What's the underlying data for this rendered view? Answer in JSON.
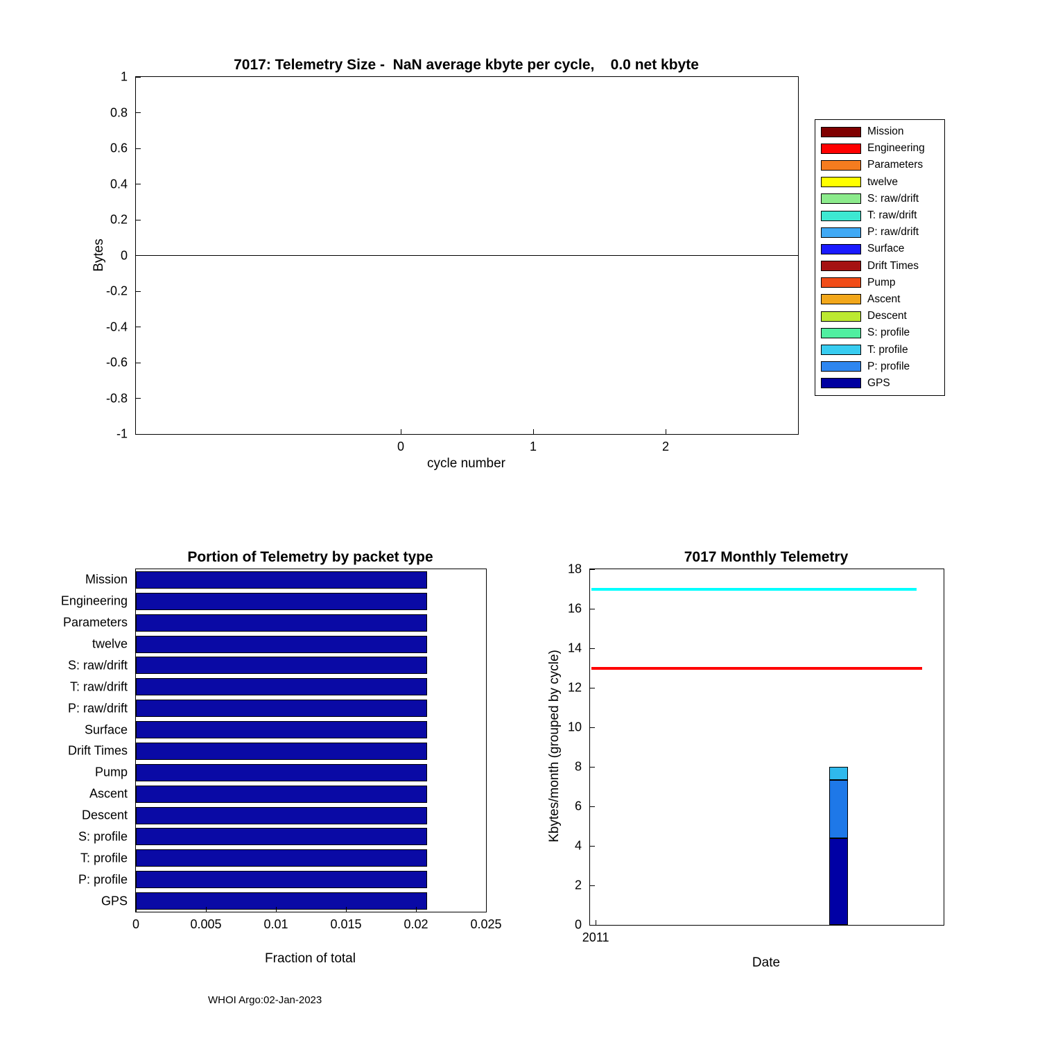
{
  "figure": {
    "footer": "WHOI Argo:02-Jan-2023"
  },
  "chart_data": [
    {
      "id": "telemetry-size",
      "type": "line",
      "title": "7017: Telemetry Size -  NaN average kbyte per cycle,    0.0 net kbyte",
      "xlabel": "cycle number",
      "ylabel": "Bytes",
      "xlim": [
        -2,
        3
      ],
      "ylim": [
        -1,
        1
      ],
      "xticks": [
        0,
        1,
        2
      ],
      "yticks": [
        -1,
        -0.8,
        -0.6,
        -0.4,
        -0.2,
        0,
        0.2,
        0.4,
        0.6,
        0.8,
        1
      ],
      "series": [],
      "zero_line": true,
      "grid": false,
      "legend": {
        "position": "right-outside",
        "entries": [
          {
            "label": "Mission",
            "color": "#7F0000"
          },
          {
            "label": "Engineering",
            "color": "#FF0000"
          },
          {
            "label": "Parameters",
            "color": "#F57C1F"
          },
          {
            "label": "twelve",
            "color": "#FFFF00"
          },
          {
            "label": "S: raw/drift",
            "color": "#8CEB8C"
          },
          {
            "label": "T: raw/drift",
            "color": "#3DE8D2"
          },
          {
            "label": "P: raw/drift",
            "color": "#3FA9F5"
          },
          {
            "label": "Surface",
            "color": "#1A1AFF"
          },
          {
            "label": "Drift Times",
            "color": "#A51212"
          },
          {
            "label": "Pump",
            "color": "#F04C18"
          },
          {
            "label": "Ascent",
            "color": "#F2A71B"
          },
          {
            "label": "Descent",
            "color": "#BCE931"
          },
          {
            "label": "S: profile",
            "color": "#50EFA0"
          },
          {
            "label": "T: profile",
            "color": "#38CCF0"
          },
          {
            "label": "P: profile",
            "color": "#2E86F0"
          },
          {
            "label": "GPS",
            "color": "#0000A0"
          }
        ]
      }
    },
    {
      "id": "portion-by-packet-type",
      "type": "bar",
      "orientation": "horizontal",
      "title": "Portion of Telemetry by packet type",
      "xlabel": "Fraction of total",
      "categories": [
        "Mission",
        "Engineering",
        "Parameters",
        "twelve",
        "S: raw/drift",
        "T: raw/drift",
        "P: raw/drift",
        "Surface",
        "Drift Times",
        "Pump",
        "Ascent",
        "Descent",
        "S: profile",
        "T: profile",
        "P: profile",
        "GPS"
      ],
      "values": [
        0.0208,
        0.0208,
        0.0208,
        0.0208,
        0.0208,
        0.0208,
        0.0208,
        0.0208,
        0.0208,
        0.0208,
        0.0208,
        0.0208,
        0.0208,
        0.0208,
        0.0208,
        0.0208
      ],
      "xlim": [
        0,
        0.025
      ],
      "xticks": [
        0,
        0.005,
        0.01,
        0.015,
        0.02,
        0.025
      ],
      "bar_color": "#0A0AA5",
      "grid": false
    },
    {
      "id": "monthly-telemetry",
      "type": "bar",
      "title": "7017 Monthly Telemetry",
      "xlabel": "Date",
      "ylabel": "Kbytes/month (grouped by cycle)",
      "ylim": [
        0,
        18
      ],
      "yticks": [
        0,
        2,
        4,
        6,
        8,
        10,
        12,
        14,
        16,
        18
      ],
      "xticks": [
        {
          "label": "2011",
          "frac": 0.016
        }
      ],
      "hlines": [
        {
          "y": 17,
          "color": "#00FFFF",
          "width_frac": 0.92
        },
        {
          "y": 13,
          "color": "#FF0000",
          "width_frac": 0.935
        }
      ],
      "stacked_bar": {
        "x_frac": 0.676,
        "width_frac": 0.053,
        "segments": [
          {
            "label": "GPS",
            "from": 0,
            "to": 4.4,
            "color": "#0000A5"
          },
          {
            "label": "P: profile",
            "from": 4.4,
            "to": 7.35,
            "color": "#1E78E8"
          },
          {
            "label": "T: profile",
            "from": 7.35,
            "to": 8.0,
            "color": "#2FB9EC"
          }
        ]
      },
      "grid": false
    }
  ]
}
